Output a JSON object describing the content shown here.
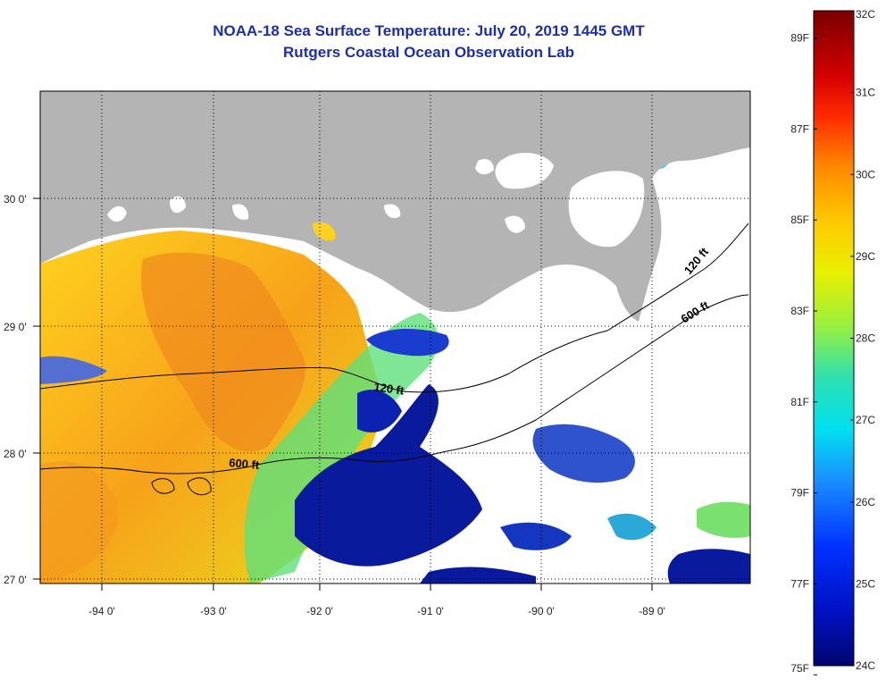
{
  "title_line1": "NOAA-18 Sea Surface Temperature:  July 20, 2019 1445 GMT",
  "title_line2": "Rutgers Coastal Ocean Observation Lab",
  "lat_labels": [
    "30 0'",
    "29 0'",
    "28 0'",
    "27 0'"
  ],
  "lon_labels": [
    "-94 0'",
    "-93 0'",
    "-92 0'",
    "-91 0'",
    "-90 0'",
    "-89 0'"
  ],
  "contours": {
    "c120_mid": "120 ft",
    "c600_mid": "600 ft",
    "c120_east": "120 ft",
    "c600_east": "600 ft"
  },
  "colorbar": {
    "celsius": [
      "32C",
      "31C",
      "30C",
      "29C",
      "28C",
      "27C",
      "26C",
      "25C",
      "24C"
    ],
    "fahrenheit": [
      "89F",
      "87F",
      "85F",
      "83F",
      "81F",
      "79F",
      "77F",
      "75F"
    ],
    "celsius_values": [
      32,
      31,
      30,
      29,
      28,
      27,
      26,
      25,
      24
    ],
    "fahrenheit_values": [
      89,
      87,
      85,
      83,
      81,
      79,
      77,
      75
    ]
  },
  "colors": {
    "land": "#b4b4b4",
    "title": "#1c2fa8",
    "warm": "#f5a623",
    "cool": "#0a1a9c"
  }
}
